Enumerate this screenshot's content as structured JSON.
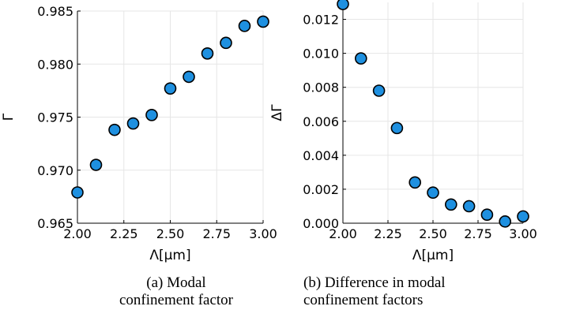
{
  "chart_data": [
    {
      "type": "scatter",
      "title": "",
      "xlabel": "Λ[μm]",
      "ylabel": "Γ",
      "xlim": [
        2.0,
        3.0
      ],
      "ylim": [
        0.965,
        0.985
      ],
      "xticks": [
        "2.00",
        "2.25",
        "2.50",
        "2.75",
        "3.00"
      ],
      "yticks": [
        "0.965",
        "0.970",
        "0.975",
        "0.980",
        "0.985"
      ],
      "grid": true,
      "marker_color": "#1e90e0",
      "x": [
        2.0,
        2.1,
        2.2,
        2.3,
        2.4,
        2.5,
        2.6,
        2.7,
        2.8,
        2.9,
        3.0
      ],
      "y": [
        0.9679,
        0.9705,
        0.9738,
        0.9744,
        0.9752,
        0.9777,
        0.9788,
        0.981,
        0.982,
        0.9836,
        0.984
      ]
    },
    {
      "type": "scatter",
      "title": "",
      "xlabel": "Λ[μm]",
      "ylabel": "ΔΓ",
      "xlim": [
        2.0,
        3.0
      ],
      "ylim": [
        0.0,
        0.013
      ],
      "xticks": [
        "2.00",
        "2.25",
        "2.50",
        "2.75",
        "3.00"
      ],
      "yticks": [
        "0.000",
        "0.002",
        "0.004",
        "0.006",
        "0.008",
        "0.010",
        "0.012"
      ],
      "grid": true,
      "marker_color": "#1e90e0",
      "x": [
        2.0,
        2.1,
        2.2,
        2.3,
        2.4,
        2.5,
        2.6,
        2.7,
        2.8,
        2.9,
        3.0
      ],
      "y": [
        0.0129,
        0.0097,
        0.0078,
        0.0056,
        0.0024,
        0.0018,
        0.0011,
        0.001,
        0.0005,
        0.0001,
        0.0004
      ]
    }
  ],
  "captions": {
    "a": "(a) Modal confinement factor",
    "b": "(b) Difference in modal confinement factors"
  }
}
